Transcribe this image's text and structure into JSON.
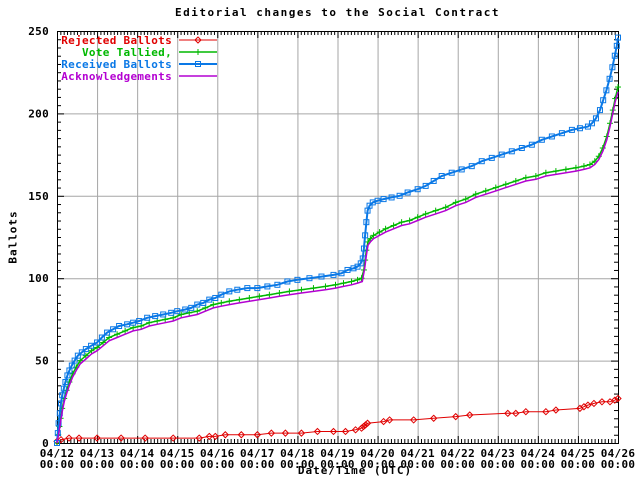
{
  "chart_data": {
    "type": "line",
    "title": "Editorial changes to the Social Contract",
    "xlabel": "Date/Time (UTC)",
    "ylabel": "Ballots",
    "xlim_days": [
      0,
      14
    ],
    "ylim": [
      0,
      250
    ],
    "y_ticks": [
      0,
      50,
      100,
      150,
      200,
      250
    ],
    "x_ticks": [
      {
        "date": "04/12",
        "time": "00:00"
      },
      {
        "date": "04/13",
        "time": "00:00"
      },
      {
        "date": "04/14",
        "time": "00:00"
      },
      {
        "date": "04/15",
        "time": "00:00"
      },
      {
        "date": "04/16",
        "time": "00:00"
      },
      {
        "date": "04/17",
        "time": "00:00"
      },
      {
        "date": "04/18",
        "time": "00:00"
      },
      {
        "date": "04/19",
        "time": "00:00"
      },
      {
        "date": "04/20",
        "time": "00:00"
      },
      {
        "date": "04/21",
        "time": "00:00"
      },
      {
        "date": "04/22",
        "time": "00:00"
      },
      {
        "date": "04/23",
        "time": "00:00"
      },
      {
        "date": "04/24",
        "time": "00:00"
      },
      {
        "date": "04/25",
        "time": "00:00"
      },
      {
        "date": "04/26",
        "time": "00:00"
      }
    ],
    "grid": true,
    "grid_color": "#a6a6a6",
    "border_color": "#000000",
    "legend_position": "top-left-inside",
    "series": [
      {
        "name": "Rejected Ballots",
        "color": "#e00000",
        "marker": "diamond",
        "line_width": 1,
        "points": [
          [
            0,
            1
          ],
          [
            0.1,
            2
          ],
          [
            0.3,
            3
          ],
          [
            0.55,
            3
          ],
          [
            1.0,
            3
          ],
          [
            1.6,
            3
          ],
          [
            2.2,
            3
          ],
          [
            2.9,
            3
          ],
          [
            3.55,
            3
          ],
          [
            3.8,
            4
          ],
          [
            3.95,
            4
          ],
          [
            4.2,
            5
          ],
          [
            4.6,
            5
          ],
          [
            5.0,
            5
          ],
          [
            5.35,
            6
          ],
          [
            5.7,
            6
          ],
          [
            6.1,
            6
          ],
          [
            6.5,
            7
          ],
          [
            6.9,
            7
          ],
          [
            7.2,
            7
          ],
          [
            7.45,
            8
          ],
          [
            7.6,
            9
          ],
          [
            7.65,
            10
          ],
          [
            7.7,
            11
          ],
          [
            7.75,
            12
          ],
          [
            8.15,
            13
          ],
          [
            8.3,
            14
          ],
          [
            8.9,
            14
          ],
          [
            9.4,
            15
          ],
          [
            9.95,
            16
          ],
          [
            10.3,
            17
          ],
          [
            11.25,
            18
          ],
          [
            11.45,
            18
          ],
          [
            11.7,
            19
          ],
          [
            12.2,
            19
          ],
          [
            12.45,
            20
          ],
          [
            13.05,
            21
          ],
          [
            13.15,
            22
          ],
          [
            13.25,
            23
          ],
          [
            13.4,
            24
          ],
          [
            13.6,
            25
          ],
          [
            13.8,
            25
          ],
          [
            13.92,
            26
          ],
          [
            14,
            27
          ]
        ]
      },
      {
        "name": "Vote Tallied,",
        "color": "#00b800",
        "marker": "plus",
        "line_width": 1.5,
        "points": [
          [
            0,
            0
          ],
          [
            0.03,
            5
          ],
          [
            0.06,
            10
          ],
          [
            0.09,
            15
          ],
          [
            0.13,
            21
          ],
          [
            0.18,
            27
          ],
          [
            0.24,
            32
          ],
          [
            0.31,
            37
          ],
          [
            0.39,
            42
          ],
          [
            0.48,
            46
          ],
          [
            0.58,
            50
          ],
          [
            0.72,
            53
          ],
          [
            0.86,
            56
          ],
          [
            1.0,
            58
          ],
          [
            1.15,
            61
          ],
          [
            1.3,
            64
          ],
          [
            1.5,
            66
          ],
          [
            1.7,
            68
          ],
          [
            1.9,
            70
          ],
          [
            2.1,
            71
          ],
          [
            2.3,
            73
          ],
          [
            2.5,
            74
          ],
          [
            2.7,
            75
          ],
          [
            2.9,
            76
          ],
          [
            3.1,
            78
          ],
          [
            3.3,
            79
          ],
          [
            3.5,
            80
          ],
          [
            3.7,
            82
          ],
          [
            3.9,
            84
          ],
          [
            4.1,
            85
          ],
          [
            4.3,
            86
          ],
          [
            4.55,
            87
          ],
          [
            4.8,
            88
          ],
          [
            5.05,
            89
          ],
          [
            5.3,
            90
          ],
          [
            5.55,
            91
          ],
          [
            5.8,
            92
          ],
          [
            6.1,
            93
          ],
          [
            6.4,
            94
          ],
          [
            6.7,
            95
          ],
          [
            6.95,
            96
          ],
          [
            7.15,
            97
          ],
          [
            7.35,
            98
          ],
          [
            7.5,
            99
          ],
          [
            7.6,
            100
          ],
          [
            7.66,
            105
          ],
          [
            7.69,
            111
          ],
          [
            7.72,
            117
          ],
          [
            7.76,
            122
          ],
          [
            7.82,
            124
          ],
          [
            7.9,
            126
          ],
          [
            8.05,
            128
          ],
          [
            8.2,
            130
          ],
          [
            8.4,
            132
          ],
          [
            8.6,
            134
          ],
          [
            8.8,
            135
          ],
          [
            9.0,
            137
          ],
          [
            9.2,
            139
          ],
          [
            9.45,
            141
          ],
          [
            9.7,
            143
          ],
          [
            9.95,
            146
          ],
          [
            10.2,
            148
          ],
          [
            10.45,
            151
          ],
          [
            10.7,
            153
          ],
          [
            10.95,
            155
          ],
          [
            11.2,
            157
          ],
          [
            11.45,
            159
          ],
          [
            11.7,
            161
          ],
          [
            11.95,
            162
          ],
          [
            12.2,
            164
          ],
          [
            12.45,
            165
          ],
          [
            12.7,
            166
          ],
          [
            12.95,
            167
          ],
          [
            13.15,
            168
          ],
          [
            13.3,
            169
          ],
          [
            13.42,
            171
          ],
          [
            13.52,
            174
          ],
          [
            13.62,
            179
          ],
          [
            13.72,
            186
          ],
          [
            13.8,
            194
          ],
          [
            13.87,
            202
          ],
          [
            13.93,
            209
          ],
          [
            14,
            216
          ]
        ]
      },
      {
        "name": "Received Ballots",
        "color": "#0a78e6",
        "marker": "square",
        "line_width": 2,
        "points": [
          [
            0,
            0
          ],
          [
            0.02,
            6
          ],
          [
            0.04,
            12
          ],
          [
            0.07,
            18
          ],
          [
            0.1,
            24
          ],
          [
            0.13,
            29
          ],
          [
            0.17,
            33
          ],
          [
            0.21,
            37
          ],
          [
            0.26,
            41
          ],
          [
            0.31,
            44
          ],
          [
            0.37,
            47
          ],
          [
            0.44,
            50
          ],
          [
            0.52,
            53
          ],
          [
            0.62,
            55
          ],
          [
            0.72,
            57
          ],
          [
            0.85,
            59
          ],
          [
            1.0,
            61
          ],
          [
            1.12,
            64
          ],
          [
            1.25,
            67
          ],
          [
            1.4,
            69
          ],
          [
            1.55,
            71
          ],
          [
            1.75,
            72
          ],
          [
            1.9,
            73
          ],
          [
            2.05,
            74
          ],
          [
            2.25,
            76
          ],
          [
            2.45,
            77
          ],
          [
            2.65,
            78
          ],
          [
            2.85,
            79
          ],
          [
            3.0,
            80
          ],
          [
            3.2,
            81
          ],
          [
            3.35,
            82
          ],
          [
            3.5,
            84
          ],
          [
            3.65,
            85
          ],
          [
            3.8,
            87
          ],
          [
            3.95,
            88
          ],
          [
            4.1,
            90
          ],
          [
            4.3,
            92
          ],
          [
            4.5,
            93
          ],
          [
            4.75,
            94
          ],
          [
            5.0,
            94
          ],
          [
            5.25,
            95
          ],
          [
            5.5,
            96
          ],
          [
            5.75,
            98
          ],
          [
            6.0,
            99
          ],
          [
            6.3,
            100
          ],
          [
            6.6,
            101
          ],
          [
            6.9,
            102
          ],
          [
            7.1,
            103
          ],
          [
            7.25,
            105
          ],
          [
            7.4,
            106
          ],
          [
            7.5,
            107
          ],
          [
            7.58,
            109
          ],
          [
            7.63,
            112
          ],
          [
            7.66,
            118
          ],
          [
            7.69,
            126
          ],
          [
            7.72,
            134
          ],
          [
            7.75,
            141
          ],
          [
            7.8,
            144
          ],
          [
            7.88,
            146
          ],
          [
            8.0,
            147
          ],
          [
            8.15,
            148
          ],
          [
            8.35,
            149
          ],
          [
            8.55,
            150
          ],
          [
            8.75,
            152
          ],
          [
            9.0,
            154
          ],
          [
            9.2,
            156
          ],
          [
            9.4,
            159
          ],
          [
            9.6,
            162
          ],
          [
            9.85,
            164
          ],
          [
            10.1,
            166
          ],
          [
            10.35,
            168
          ],
          [
            10.6,
            171
          ],
          [
            10.85,
            173
          ],
          [
            11.1,
            175
          ],
          [
            11.35,
            177
          ],
          [
            11.6,
            179
          ],
          [
            11.85,
            181
          ],
          [
            12.1,
            184
          ],
          [
            12.35,
            186
          ],
          [
            12.6,
            188
          ],
          [
            12.85,
            190
          ],
          [
            13.05,
            191
          ],
          [
            13.25,
            192
          ],
          [
            13.35,
            194
          ],
          [
            13.45,
            197
          ],
          [
            13.55,
            202
          ],
          [
            13.63,
            208
          ],
          [
            13.71,
            214
          ],
          [
            13.79,
            221
          ],
          [
            13.86,
            228
          ],
          [
            13.92,
            235
          ],
          [
            13.97,
            241
          ],
          [
            14,
            246
          ]
        ]
      },
      {
        "name": "Acknowledgements",
        "color": "#b400d2",
        "marker": "none",
        "line_width": 1.5,
        "points": [
          [
            0,
            0
          ],
          [
            0.03,
            4
          ],
          [
            0.06,
            8
          ],
          [
            0.09,
            13
          ],
          [
            0.13,
            19
          ],
          [
            0.18,
            25
          ],
          [
            0.24,
            30
          ],
          [
            0.31,
            35
          ],
          [
            0.39,
            40
          ],
          [
            0.48,
            44
          ],
          [
            0.58,
            48
          ],
          [
            0.72,
            51
          ],
          [
            0.86,
            54
          ],
          [
            1.0,
            56
          ],
          [
            1.15,
            59
          ],
          [
            1.3,
            62
          ],
          [
            1.5,
            64
          ],
          [
            1.7,
            66
          ],
          [
            1.9,
            68
          ],
          [
            2.1,
            69
          ],
          [
            2.3,
            71
          ],
          [
            2.5,
            72
          ],
          [
            2.7,
            73
          ],
          [
            2.9,
            74
          ],
          [
            3.1,
            76
          ],
          [
            3.3,
            77
          ],
          [
            3.5,
            78
          ],
          [
            3.7,
            80
          ],
          [
            3.9,
            82
          ],
          [
            4.1,
            83
          ],
          [
            4.3,
            84
          ],
          [
            4.55,
            85
          ],
          [
            4.8,
            86
          ],
          [
            5.05,
            87
          ],
          [
            5.3,
            88
          ],
          [
            5.55,
            89
          ],
          [
            5.8,
            90
          ],
          [
            6.1,
            91
          ],
          [
            6.4,
            92
          ],
          [
            6.7,
            93
          ],
          [
            6.95,
            94
          ],
          [
            7.15,
            95
          ],
          [
            7.35,
            96
          ],
          [
            7.5,
            97
          ],
          [
            7.62,
            98
          ],
          [
            7.68,
            106
          ],
          [
            7.72,
            114
          ],
          [
            7.76,
            120
          ],
          [
            7.82,
            122
          ],
          [
            7.9,
            124
          ],
          [
            8.05,
            126
          ],
          [
            8.2,
            128
          ],
          [
            8.4,
            130
          ],
          [
            8.6,
            132
          ],
          [
            8.8,
            133
          ],
          [
            9.0,
            135
          ],
          [
            9.2,
            137
          ],
          [
            9.45,
            139
          ],
          [
            9.7,
            141
          ],
          [
            9.95,
            144
          ],
          [
            10.2,
            146
          ],
          [
            10.45,
            149
          ],
          [
            10.7,
            151
          ],
          [
            10.95,
            153
          ],
          [
            11.2,
            155
          ],
          [
            11.45,
            157
          ],
          [
            11.7,
            159
          ],
          [
            11.95,
            160
          ],
          [
            12.2,
            162
          ],
          [
            12.45,
            163
          ],
          [
            12.7,
            164
          ],
          [
            12.95,
            165
          ],
          [
            13.15,
            166
          ],
          [
            13.3,
            167
          ],
          [
            13.42,
            169
          ],
          [
            13.52,
            172
          ],
          [
            13.62,
            177
          ],
          [
            13.72,
            184
          ],
          [
            13.8,
            192
          ],
          [
            13.87,
            200
          ],
          [
            13.93,
            207
          ],
          [
            14,
            213
          ]
        ]
      }
    ]
  }
}
